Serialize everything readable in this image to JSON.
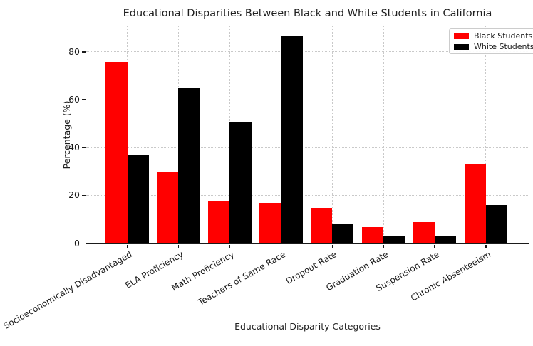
{
  "chart_data": {
    "type": "bar",
    "title": "Educational Disparities Between Black and White Students in California",
    "xlabel": "Educational Disparity Categories",
    "ylabel": "Percentage (%)",
    "categories": [
      "Socioeconomically Disadvantaged",
      "ELA Proficiency",
      "Math Proficiency",
      "Teachers of Same Race",
      "Dropout Rate",
      "Graduation Rate",
      "Suspension Rate",
      "Chronic Absenteeism"
    ],
    "series": [
      {
        "name": "Black Students",
        "color": "#ff0000",
        "values": [
          76,
          30,
          18,
          17,
          15,
          7,
          9,
          33
        ]
      },
      {
        "name": "White Students",
        "color": "#000000",
        "values": [
          37,
          65,
          51,
          87,
          8,
          3,
          3,
          16
        ]
      }
    ],
    "ylim": [
      0,
      91
    ],
    "yticks": [
      0,
      20,
      40,
      60,
      80
    ],
    "grid": {
      "style": "dotted",
      "color": "#c9c9c9"
    },
    "legend": {
      "position": "upper right",
      "items": [
        "Black Students",
        "White Students"
      ]
    }
  }
}
